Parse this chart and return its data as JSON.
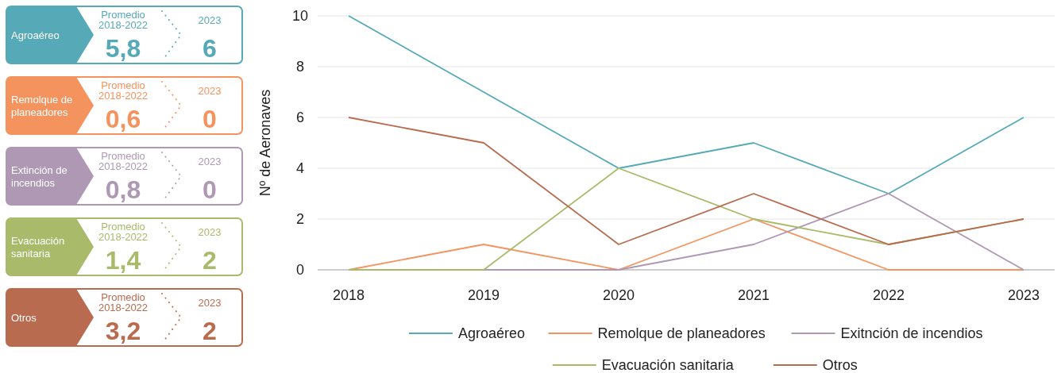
{
  "chart_data": [
    {
      "type": "other",
      "categories": [
        "Agroaéreo",
        "Remolque de planeadores",
        "Extinción de incendios",
        "Evacuación sanitaria",
        "Otros"
      ],
      "colors": [
        "#56a9b6",
        "#f5935e",
        "#ae98b4",
        "#a9bb6a",
        "#b86b4f"
      ],
      "series": [
        {
          "name": "Promedio 2018-2022",
          "values": [
            5.8,
            0.6,
            0.8,
            1.4,
            3.2
          ],
          "value_labels": [
            "5,8",
            "0,6",
            "0,8",
            "1,4",
            "3,2"
          ]
        },
        {
          "name": "2023",
          "values": [
            6,
            0,
            0,
            2,
            2
          ],
          "value_labels": [
            "6",
            "0",
            "0",
            "2",
            "2"
          ]
        }
      ]
    },
    {
      "type": "line",
      "categories": [
        "2018",
        "2019",
        "2020",
        "2021",
        "2022",
        "2023"
      ],
      "ylabel": "Nº de Aeronaves",
      "ylim": [
        0,
        10
      ],
      "yticks": [
        0,
        2,
        4,
        6,
        8,
        10
      ],
      "grid": "y",
      "legend": "bottom",
      "marker": "none",
      "line_style": "solid",
      "series": [
        {
          "name": "Agroaéreo",
          "color": "#56a9b6",
          "values": [
            10,
            7,
            4,
            5,
            3,
            6
          ]
        },
        {
          "name": "Remolque de planeadores",
          "color": "#f5935e",
          "values": [
            0,
            1,
            0,
            2,
            0,
            0
          ]
        },
        {
          "name": "Exitnción de incendios",
          "color": "#ae98b4",
          "values": [
            0,
            0,
            0,
            1,
            3,
            0
          ]
        },
        {
          "name": "Evacuación sanitaria",
          "color": "#a9bb6a",
          "values": [
            0,
            0,
            4,
            2,
            1,
            2
          ]
        },
        {
          "name": "Otros",
          "color": "#b86b4f",
          "values": [
            6,
            5,
            1,
            3,
            1,
            2
          ]
        }
      ]
    }
  ]
}
